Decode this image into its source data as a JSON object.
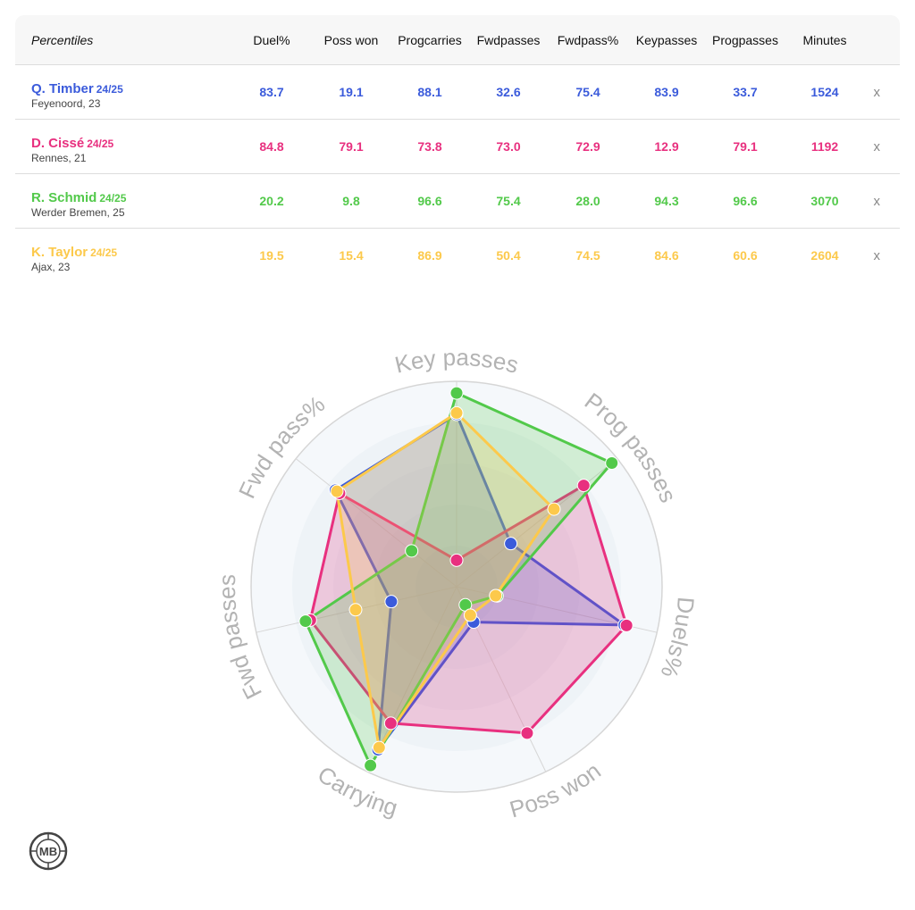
{
  "table": {
    "corner_label": "Percentiles",
    "columns": [
      [
        "Duel%"
      ],
      [
        "Poss won"
      ],
      [
        "Prog",
        "carries"
      ],
      [
        "Fwd",
        "passes"
      ],
      [
        "Fwd",
        "pass%"
      ],
      [
        "Key",
        "passes"
      ],
      [
        "Prog",
        "passes"
      ],
      [
        "Minutes"
      ]
    ],
    "remove_label": "x"
  },
  "players": [
    {
      "name": "Q. Timber",
      "season": "24/25",
      "club": "Feyenoord, 23",
      "color": "#3b5bdb",
      "values": [
        "83.7",
        "19.1",
        "88.1",
        "32.6",
        "75.4",
        "83.9",
        "33.7",
        "1524"
      ]
    },
    {
      "name": "D. Cissé",
      "season": "24/25",
      "club": "Rennes, 21",
      "color": "#e8307f",
      "values": [
        "84.8",
        "79.1",
        "73.8",
        "73.0",
        "72.9",
        "12.9",
        "79.1",
        "1192"
      ]
    },
    {
      "name": "R. Schmid",
      "season": "24/25",
      "club": "Werder Bremen, 25",
      "color": "#52c94a",
      "values": [
        "20.2",
        "9.8",
        "96.6",
        "75.4",
        "28.0",
        "94.3",
        "96.6",
        "3070"
      ]
    },
    {
      "name": "K. Taylor",
      "season": "24/25",
      "club": "Ajax, 23",
      "color": "#fcc94b",
      "values": [
        "19.5",
        "15.4",
        "86.9",
        "50.4",
        "74.5",
        "84.6",
        "60.6",
        "2604"
      ]
    }
  ],
  "chart_data": {
    "type": "radar",
    "axes": [
      "Key passes",
      "Prog passes",
      "Duels%",
      "Poss won",
      "Carrying",
      "Fwd passes",
      "Fwd pass%"
    ],
    "range": [
      0,
      100
    ],
    "series": [
      {
        "name": "Q. Timber",
        "color": "#3b5bdb",
        "values": [
          83.9,
          33.7,
          83.7,
          19.1,
          88.1,
          32.6,
          75.4
        ]
      },
      {
        "name": "D. Cissé",
        "color": "#e8307f",
        "values": [
          12.9,
          79.1,
          84.8,
          79.1,
          73.8,
          73.0,
          72.9
        ]
      },
      {
        "name": "R. Schmid",
        "color": "#52c94a",
        "values": [
          94.3,
          96.6,
          20.2,
          9.8,
          96.6,
          75.4,
          28.0
        ]
      },
      {
        "name": "K. Taylor",
        "color": "#fcc94b",
        "values": [
          84.6,
          60.6,
          19.5,
          15.4,
          86.9,
          50.4,
          74.5
        ]
      }
    ]
  },
  "logo": {
    "text": "MB",
    "color": "#444444"
  }
}
